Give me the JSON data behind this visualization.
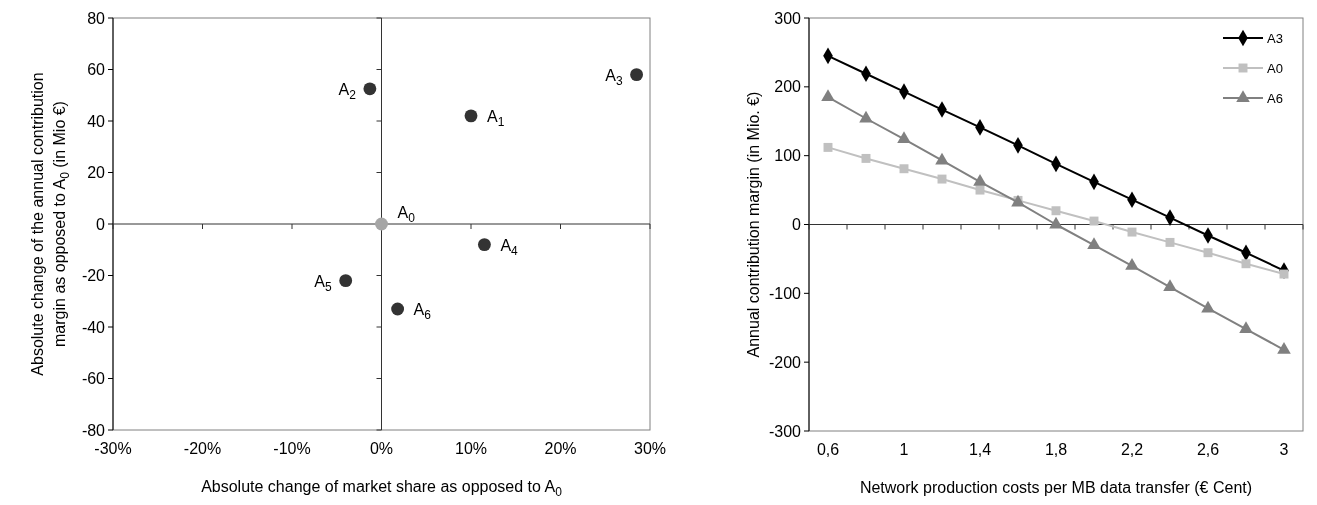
{
  "chart_data": [
    {
      "type": "scatter",
      "xlabel": "Absolute change of market share as opposed to A$_{0}$",
      "ylabel": "Absolute change of the annual contribution\nmargin as opposed to A$_{0}$ (in Mio €)",
      "xlim": [
        -30,
        30
      ],
      "xticks": [
        {
          "value": -30,
          "label": "-30%"
        },
        {
          "value": -20,
          "label": "-20%"
        },
        {
          "value": -10,
          "label": "-10%"
        },
        {
          "value": 0,
          "label": "0%"
        },
        {
          "value": 10,
          "label": "10%"
        },
        {
          "value": 20,
          "label": "20%"
        },
        {
          "value": 30,
          "label": "30%"
        }
      ],
      "ylim": [
        -80,
        80
      ],
      "yticks": [
        -80,
        -60,
        -40,
        -20,
        0,
        20,
        40,
        60,
        80
      ],
      "grid": false,
      "legend": false,
      "marker": "circle",
      "ref_lines": [
        {
          "axis": "x",
          "value": 0,
          "color": "#333333"
        },
        {
          "axis": "y",
          "value": 0,
          "color": "#333333"
        }
      ],
      "series": [
        {
          "color": "#333333",
          "x": [
            10,
            -1.3,
            28.5,
            11.5,
            -4,
            1.8
          ],
          "values": [
            42,
            52.5,
            58,
            -8,
            -22,
            -33
          ]
        },
        {
          "color": "#a6a6a6",
          "x": [
            0
          ],
          "values": [
            0
          ]
        }
      ],
      "annotations": [
        {
          "text": "A$_{0}$",
          "x": 0,
          "y": 0
        },
        {
          "text": "A$_{1}$",
          "x": 10,
          "y": 42
        },
        {
          "text": "A$_{2}$",
          "x": -1.3,
          "y": 52.5
        },
        {
          "text": "A$_{3}$",
          "x": 28.5,
          "y": 58
        },
        {
          "text": "A$_{4}$",
          "x": 11.5,
          "y": -8
        },
        {
          "text": "A$_{5}$",
          "x": -4,
          "y": -22
        },
        {
          "text": "A$_{6}$",
          "x": 1.8,
          "y": -33
        }
      ]
    },
    {
      "type": "line",
      "xlabel": "Network production costs per MB data transfer (€ Cent)",
      "ylabel": "Annual contribution margin (in Mio. €)",
      "categories": [
        "0,6",
        null,
        "1",
        null,
        "1,4",
        null,
        "1,8",
        null,
        "2,2",
        null,
        "2,6",
        null,
        "3"
      ],
      "ylim": [
        -300,
        300
      ],
      "yticks": [
        -300,
        -200,
        -100,
        0,
        100,
        200,
        300
      ],
      "grid": false,
      "legend": "top right",
      "line_style": "solid",
      "ref_lines": [
        {
          "axis": "y",
          "value": 0,
          "color": "#333333"
        }
      ],
      "series": [
        {
          "name": "A3",
          "color": "#000000",
          "marker": "diamond",
          "values": [
            245,
            219,
            193,
            167,
            141,
            115,
            88,
            62,
            36,
            10,
            -16,
            -41,
            -67
          ]
        },
        {
          "name": "A0",
          "color": "#c0c0c0",
          "marker": "square",
          "values": [
            112,
            96,
            81,
            66,
            50,
            35,
            20,
            5,
            -11,
            -26,
            -41,
            -57,
            -72
          ]
        },
        {
          "name": "A6",
          "color": "#808080",
          "marker": "triangle",
          "values": [
            185,
            154,
            124,
            93,
            62,
            32,
            0,
            -30,
            -60,
            -91,
            -122,
            -152,
            -182
          ]
        }
      ]
    }
  ]
}
